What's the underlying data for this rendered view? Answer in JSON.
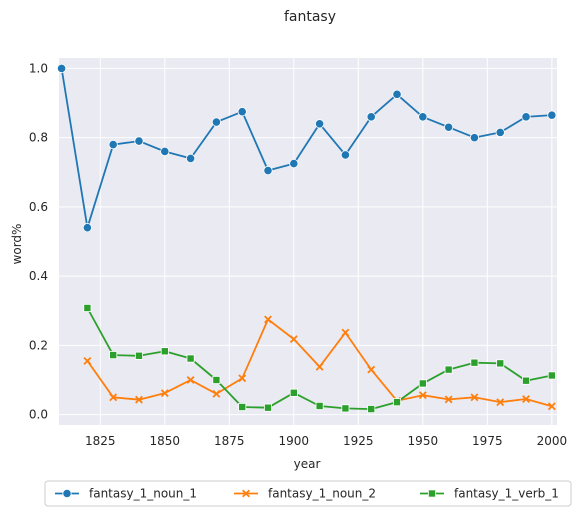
{
  "chart_data": {
    "type": "line",
    "title": "fantasy",
    "xlabel": "year",
    "ylabel": "word%",
    "xlim": [
      1809,
      2002
    ],
    "ylim": [
      -0.03,
      1.03
    ],
    "x_ticks": [
      1825,
      1850,
      1875,
      1900,
      1925,
      1950,
      1975,
      2000
    ],
    "y_ticks": [
      0.0,
      0.2,
      0.4,
      0.6,
      0.8,
      1.0
    ],
    "y_tick_labels": [
      "0.0",
      "0.2",
      "0.4",
      "0.6",
      "0.8",
      "1.0"
    ],
    "grid": true,
    "legend_position": "bottom",
    "background": "#eaeaf2",
    "series": [
      {
        "name": "fantasy_1_noun_1",
        "color": "#1f77b4",
        "marker": "circle",
        "x": [
          1810,
          1820,
          1830,
          1840,
          1850,
          1860,
          1870,
          1880,
          1890,
          1900,
          1910,
          1920,
          1930,
          1940,
          1950,
          1960,
          1970,
          1980,
          1990,
          2000
        ],
        "values": [
          1.0,
          0.54,
          0.78,
          0.79,
          0.76,
          0.74,
          0.845,
          0.875,
          0.705,
          0.725,
          0.84,
          0.75,
          0.86,
          0.925,
          0.86,
          0.83,
          0.8,
          0.815,
          0.86,
          0.865
        ]
      },
      {
        "name": "fantasy_1_noun_2",
        "color": "#ff7f0e",
        "marker": "x",
        "x": [
          1820,
          1830,
          1840,
          1850,
          1860,
          1870,
          1880,
          1890,
          1900,
          1910,
          1920,
          1930,
          1940,
          1950,
          1960,
          1970,
          1980,
          1990,
          2000
        ],
        "values": [
          0.155,
          0.05,
          0.043,
          0.062,
          0.1,
          0.06,
          0.105,
          0.275,
          0.218,
          0.138,
          0.237,
          0.13,
          0.04,
          0.056,
          0.044,
          0.05,
          0.036,
          0.045,
          0.024
        ]
      },
      {
        "name": "fantasy_1_verb_1",
        "color": "#2ca02c",
        "marker": "square",
        "x": [
          1820,
          1830,
          1840,
          1850,
          1860,
          1870,
          1880,
          1890,
          1900,
          1910,
          1920,
          1930,
          1940,
          1950,
          1960,
          1970,
          1980,
          1990,
          2000
        ],
        "values": [
          0.308,
          0.172,
          0.17,
          0.183,
          0.162,
          0.1,
          0.022,
          0.02,
          0.063,
          0.025,
          0.018,
          0.016,
          0.036,
          0.09,
          0.13,
          0.15,
          0.148,
          0.098,
          0.113
        ]
      }
    ]
  }
}
